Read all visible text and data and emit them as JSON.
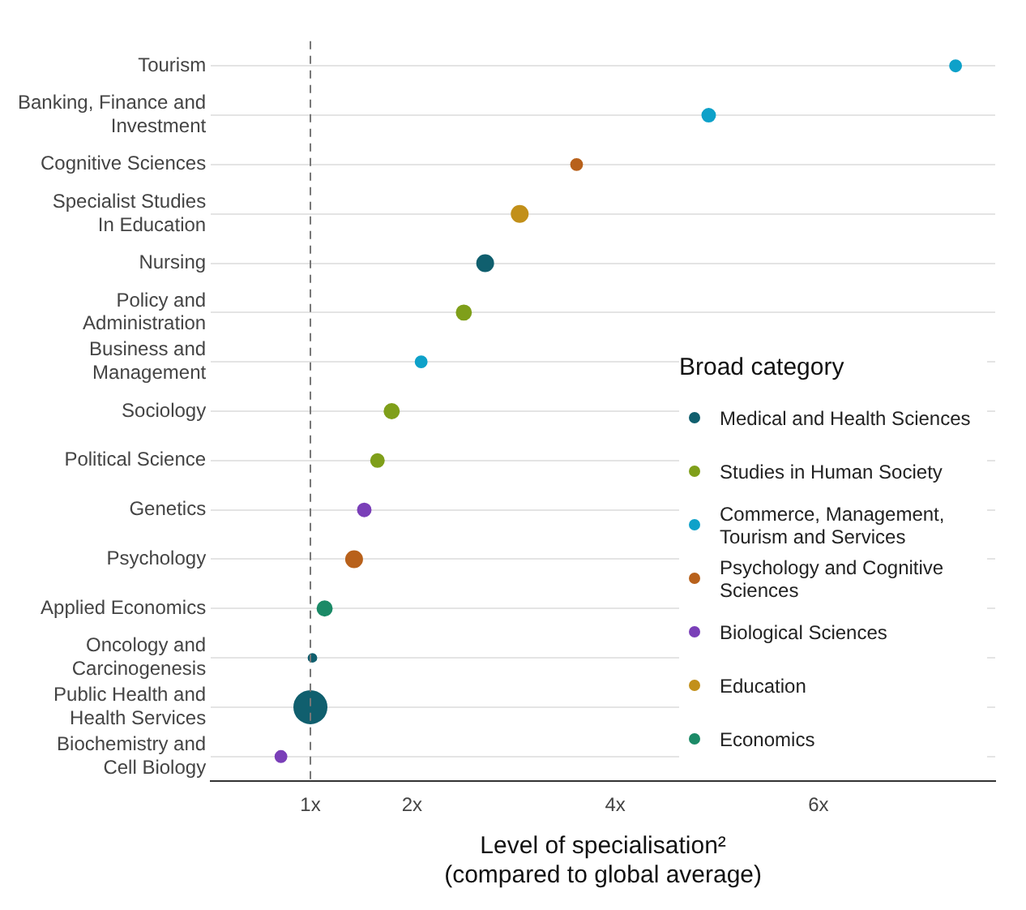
{
  "chart_data": {
    "type": "bubble",
    "orientation": "horizontal",
    "marker": "circle",
    "categories": [
      "Tourism",
      "Banking, Finance and\nInvestment",
      "Cognitive Sciences",
      "Specialist Studies\nIn Education",
      "Nursing",
      "Policy and\nAdministration",
      "Business and\nManagement",
      "Sociology",
      "Political Science",
      "Genetics",
      "Psychology",
      "Applied Economics",
      "Oncology and\nCarcinogenesis",
      "Public Health and\nHealth Services",
      "Biochemistry and\nCell Biology"
    ],
    "series": [
      {
        "name": "Medical and Health Sciences",
        "color": "#105f6e",
        "values": [
          null,
          null,
          null,
          null,
          2.72,
          null,
          null,
          null,
          null,
          null,
          null,
          null,
          1.02,
          1.0,
          null
        ],
        "sizes": [
          null,
          null,
          null,
          null,
          0.25,
          null,
          null,
          null,
          null,
          null,
          null,
          null,
          0.06,
          1,
          null
        ]
      },
      {
        "name": "Studies in Human Society",
        "color": "#7f9f1a",
        "values": [
          null,
          null,
          null,
          null,
          null,
          2.51,
          null,
          1.8,
          1.66,
          null,
          null,
          null,
          null,
          null,
          null
        ],
        "sizes": [
          null,
          null,
          null,
          null,
          null,
          0.2,
          null,
          0.2,
          0.16,
          null,
          null,
          null,
          null,
          null,
          null
        ]
      },
      {
        "name": "Commerce, Management, Tourism and Services",
        "color": "#0ea1c9",
        "values": [
          7.35,
          4.92,
          null,
          null,
          null,
          null,
          2.09,
          null,
          null,
          null,
          null,
          null,
          null,
          null,
          null
        ],
        "sizes": [
          0.12,
          0.16,
          null,
          null,
          null,
          null,
          0.12,
          null,
          null,
          null,
          null,
          null,
          null,
          null,
          null
        ]
      },
      {
        "name": "Psychology and Cognitive Sciences",
        "color": "#b8611b",
        "values": [
          null,
          null,
          3.62,
          null,
          null,
          null,
          null,
          null,
          null,
          null,
          1.43,
          null,
          null,
          null,
          null
        ],
        "sizes": [
          null,
          null,
          0.12,
          null,
          null,
          null,
          null,
          null,
          null,
          null,
          0.25,
          null,
          null,
          null,
          null
        ]
      },
      {
        "name": "Biological Sciences",
        "color": "#7a3fb8",
        "values": [
          null,
          null,
          null,
          null,
          null,
          null,
          null,
          null,
          null,
          1.53,
          null,
          null,
          null,
          null,
          0.71
        ],
        "sizes": [
          null,
          null,
          null,
          null,
          null,
          null,
          null,
          null,
          null,
          0.16,
          null,
          null,
          null,
          null,
          0.12
        ]
      },
      {
        "name": "Education",
        "color": "#c2901a",
        "values": [
          null,
          null,
          null,
          3.06,
          null,
          null,
          null,
          null,
          null,
          null,
          null,
          null,
          null,
          null,
          null
        ],
        "sizes": [
          null,
          null,
          null,
          0.25,
          null,
          null,
          null,
          null,
          null,
          null,
          null,
          null,
          null,
          null,
          null
        ]
      },
      {
        "name": "Economics",
        "color": "#1b8a67",
        "values": [
          null,
          null,
          null,
          null,
          null,
          null,
          null,
          null,
          null,
          null,
          null,
          1.14,
          null,
          null,
          null
        ],
        "sizes": [
          null,
          null,
          null,
          null,
          null,
          null,
          null,
          null,
          null,
          null,
          null,
          0.2,
          null,
          null,
          null
        ]
      }
    ],
    "xlim": [
      0.02,
      7.74
    ],
    "xticks": [
      {
        "value": 1,
        "label": "1x"
      },
      {
        "value": 2,
        "label": "2x"
      },
      {
        "value": 4,
        "label": "4x"
      },
      {
        "value": 6,
        "label": "6x"
      }
    ],
    "xlabel": "Level of specialisation²\n(compared to global average)",
    "legend_title": "Broad category",
    "legend": "right",
    "grid": "y",
    "ref_lines": [
      {
        "axis": "x",
        "value": 1,
        "color": "#777777",
        "line_style": "dashed"
      }
    ]
  }
}
